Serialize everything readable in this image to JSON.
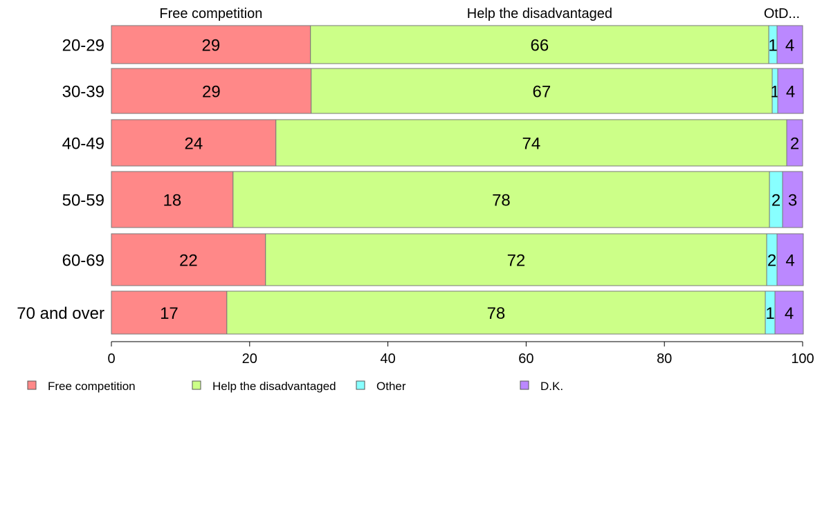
{
  "chart_data": {
    "type": "bar",
    "orientation": "horizontal",
    "stacked": true,
    "categories": [
      "20-29",
      "30-39",
      "40-49",
      "50-59",
      "60-69",
      "70 and over"
    ],
    "series": [
      {
        "name": "Free competition",
        "values": [
          28.8,
          28.9,
          23.8,
          17.6,
          22.3,
          16.7
        ],
        "labels": [
          "29",
          "29",
          "24",
          "18",
          "22",
          "17"
        ],
        "color": "#FF8888"
      },
      {
        "name": "Help the disadvantaged",
        "values": [
          66.3,
          66.7,
          73.9,
          77.6,
          72.5,
          77.9
        ],
        "labels": [
          "66",
          "67",
          "74",
          "78",
          "72",
          "78"
        ],
        "color": "#CCFF88"
      },
      {
        "name": "Other",
        "values": [
          1.2,
          0.8,
          0.0,
          1.9,
          1.5,
          1.4
        ],
        "labels": [
          "1",
          "1",
          "",
          "2",
          "2",
          "1"
        ],
        "color": "#88FFFF"
      },
      {
        "name": "D.K.",
        "values": [
          3.7,
          3.7,
          2.3,
          2.9,
          3.8,
          4.1
        ],
        "labels": [
          "4",
          "4",
          "2",
          "3",
          "4",
          "4"
        ],
        "color": "#BB88FF"
      }
    ],
    "top_labels": [
      "Free competition",
      "Help the disadvantaged",
      "OtD..."
    ],
    "xlim": [
      0,
      100
    ],
    "xticks": [
      0,
      20,
      40,
      60,
      80,
      100
    ],
    "grid": false,
    "legend_position": "bottom"
  }
}
